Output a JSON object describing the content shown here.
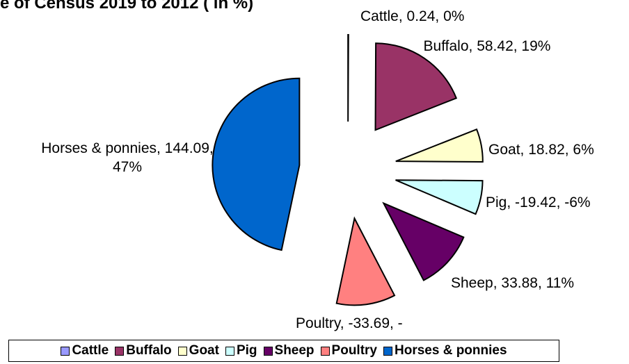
{
  "chart_data": {
    "type": "pie",
    "title": "e of Census 2019 to 2012 ( in %)",
    "categories": [
      "Cattle",
      "Buffalo",
      "Goat",
      "Pig",
      "Sheep",
      "Poultry",
      "Horses & ponnies"
    ],
    "values": [
      0.24,
      58.42,
      18.82,
      -19.42,
      33.88,
      -33.69,
      144.09
    ],
    "value_labels": [
      "Cattle, 0.24, 0%",
      "Buffalo, 58.42, 19%",
      "Goat, 18.82, 6%",
      "Pig, -19.42, -6%",
      "Sheep, 33.88, 11%",
      "Poultry, -33.69, -",
      "Horses & ponnies, 144.09, 47%"
    ],
    "colors": [
      "#9999ff",
      "#993366",
      "#ffffcc",
      "#ccffff",
      "#660066",
      "#ff8080",
      "#0066cc"
    ],
    "legend": "bottom"
  }
}
